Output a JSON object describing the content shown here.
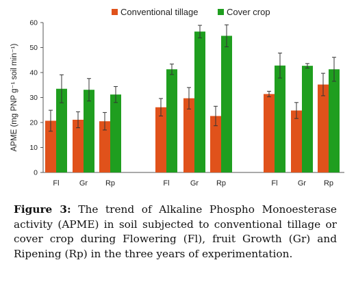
{
  "chart_data": {
    "type": "bar",
    "ylabel": "APME (mg PNP g⁻¹ soil min⁻¹)",
    "ylim": [
      0,
      60
    ],
    "yticks": [
      0,
      10,
      20,
      30,
      40,
      50,
      60
    ],
    "grid": false,
    "error_bars": true,
    "legend_position": "top",
    "groups": [
      {
        "categories": [
          "Fl",
          "Gr",
          "Rp"
        ]
      },
      {
        "categories": [
          "Fl",
          "Gr",
          "Rp"
        ]
      },
      {
        "categories": [
          "Fl",
          "Gr",
          "Rp"
        ]
      }
    ],
    "series": [
      {
        "name": "Conventional tillage",
        "color": "#e0521b",
        "values": [
          20.7,
          21.1,
          20.5,
          26.1,
          29.7,
          22.6,
          31.4,
          24.8,
          35.2
        ],
        "errors": [
          4.2,
          3.2,
          3.5,
          3.5,
          4.3,
          3.9,
          1.1,
          3.2,
          4.5
        ]
      },
      {
        "name": "Cover crop",
        "color": "#1f9e1f",
        "values": [
          33.5,
          33.1,
          31.2,
          41.3,
          56.4,
          54.7,
          42.8,
          42.7,
          41.3
        ],
        "errors": [
          5.6,
          4.5,
          3.2,
          2.1,
          2.5,
          4.4,
          5.0,
          0.9,
          4.8
        ]
      }
    ]
  },
  "caption": {
    "label": "Figure 3:",
    "text": "The trend of Alkaline Phospho Monoesterase activity (APME) in soil subjected to conventional tillage or cover crop during Flowering (Fl), fruit Growth (Gr) and Ripening (Rp) in the three years of experimentation."
  }
}
